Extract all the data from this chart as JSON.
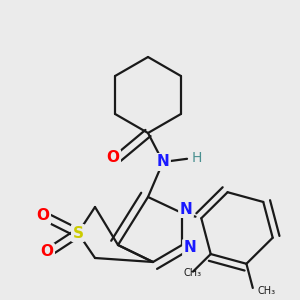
{
  "bg_color": "#ebebeb",
  "bond_color": "#1a1a1a",
  "atom_colors": {
    "O": "#ff0000",
    "N": "#1a1aff",
    "S": "#cccc00",
    "H": "#4a9090",
    "C": "#1a1a1a"
  },
  "bond_width": 1.6,
  "fig_width": 3.0,
  "fig_height": 3.0,
  "dpi": 100
}
